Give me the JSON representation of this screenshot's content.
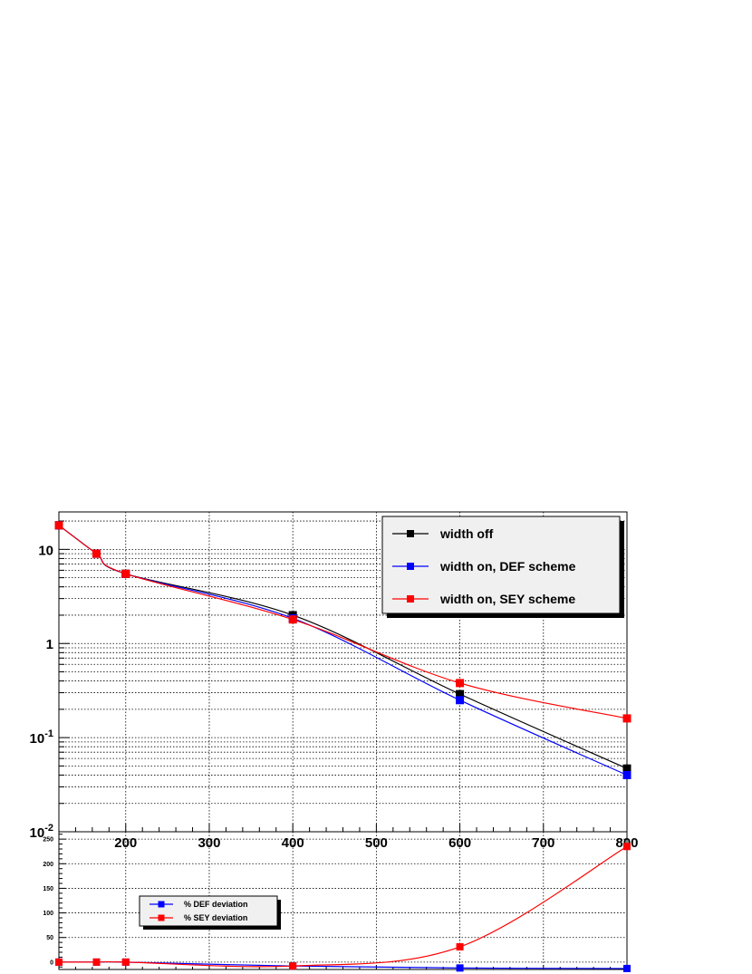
{
  "chart_data": [
    {
      "type": "line",
      "yscale": "log",
      "xlim": [
        120,
        800
      ],
      "ylim": [
        0.01,
        25
      ],
      "grid": true,
      "x": [
        120,
        165,
        200,
        400,
        600,
        800
      ],
      "xticks": [
        200,
        300,
        400,
        500,
        600,
        700,
        800
      ],
      "xticklabels": [
        "200",
        "300",
        "400",
        "500",
        "600",
        "700",
        "800"
      ],
      "yticks": [
        0.01,
        0.1,
        1,
        10
      ],
      "yticklabels": [
        {
          "base": "10",
          "exp": "-2"
        },
        {
          "base": "10",
          "exp": "-1"
        },
        {
          "base": "1",
          "exp": ""
        },
        {
          "base": "10",
          "exp": ""
        }
      ],
      "legend_position": "top-right",
      "series": [
        {
          "name": "width off",
          "color": "#000000",
          "values": [
            18,
            9,
            5.5,
            2.0,
            0.29,
            0.047
          ]
        },
        {
          "name": "width on, DEF scheme",
          "color": "#0000ff",
          "values": [
            18,
            9,
            5.5,
            1.85,
            0.25,
            0.04
          ]
        },
        {
          "name": "width on, SEY scheme",
          "color": "#ff0000",
          "values": [
            18,
            9,
            5.5,
            1.8,
            0.38,
            0.16
          ]
        }
      ]
    },
    {
      "type": "line",
      "xlim": [
        120,
        800
      ],
      "ylim": [
        -15,
        265
      ],
      "grid": true,
      "x": [
        120,
        165,
        200,
        400,
        600,
        800
      ],
      "xticks": [
        200,
        300,
        400,
        500,
        600,
        700,
        800
      ],
      "xticklabels": [
        "200",
        "300",
        "400",
        "500",
        "600",
        "700",
        "800"
      ],
      "yticks": [
        0,
        50,
        100,
        150,
        200,
        250
      ],
      "yticklabels": [
        "0",
        "50",
        "100",
        "150",
        "200",
        "250"
      ],
      "legend_position": "bottom-left",
      "series": [
        {
          "name": "% DEF deviation",
          "color": "#0000ff",
          "values": [
            0,
            0,
            0,
            -8,
            -12,
            -13
          ]
        },
        {
          "name": "% SEY deviation",
          "color": "#ff0000",
          "values": [
            0,
            0,
            0,
            -8,
            31,
            235
          ]
        }
      ]
    }
  ]
}
